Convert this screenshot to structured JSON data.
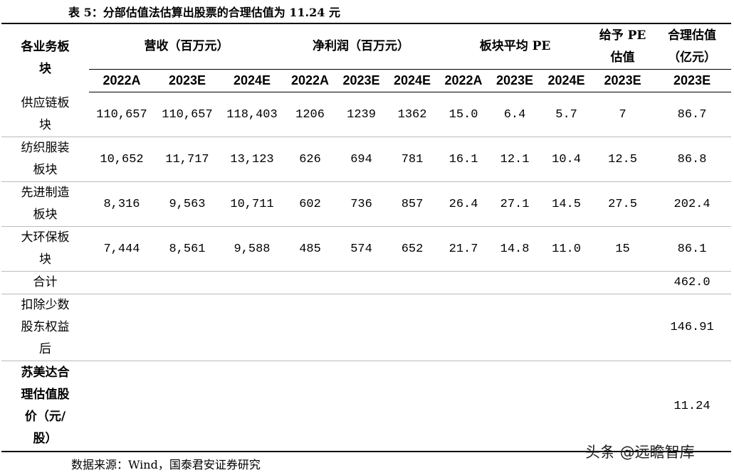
{
  "title": "表 5：分部估值法估算出股票的合理估值为 11.24 元",
  "table": {
    "header": {
      "segment": "各业务板块",
      "groups": [
        "营收（百万元）",
        "净利润（百万元）",
        "板块平均 PE",
        "给予 PE估值",
        "合理估值（亿元）"
      ],
      "years": [
        "2022A",
        "2023E",
        "2024E",
        "2022A",
        "2023E",
        "2024E",
        "2022A",
        "2023E",
        "2024E",
        "2023E",
        "2023E"
      ]
    },
    "rows": [
      {
        "label": "供应链板块",
        "cells": [
          "110,657",
          "110,657",
          "118,403",
          "1206",
          "1239",
          "1362",
          "15.0",
          "6.4",
          "5.7",
          "7",
          "86.7"
        ]
      },
      {
        "label": "纺织服装板块",
        "cells": [
          "10,652",
          "11,717",
          "13,123",
          "626",
          "694",
          "781",
          "16.1",
          "12.1",
          "10.4",
          "12.5",
          "86.8"
        ]
      },
      {
        "label": "先进制造板块",
        "cells": [
          "8,316",
          "9,563",
          "10,711",
          "602",
          "736",
          "857",
          "26.4",
          "27.1",
          "14.5",
          "27.5",
          "202.4"
        ]
      },
      {
        "label": "大环保板块",
        "cells": [
          "7,444",
          "8,561",
          "9,588",
          "485",
          "574",
          "652",
          "21.7",
          "14.8",
          "11.0",
          "15",
          "86.1"
        ]
      }
    ],
    "summary": [
      {
        "label": "合计",
        "value": "462.0"
      },
      {
        "label": "扣除少数股东权益后",
        "value": "146.91"
      },
      {
        "label": "苏美达合理估值股价（元/股）",
        "value": "11.24"
      }
    ]
  },
  "source": "数据来源：Wind，国泰君安证券研究",
  "watermark": "头条 @远瞻智库"
}
